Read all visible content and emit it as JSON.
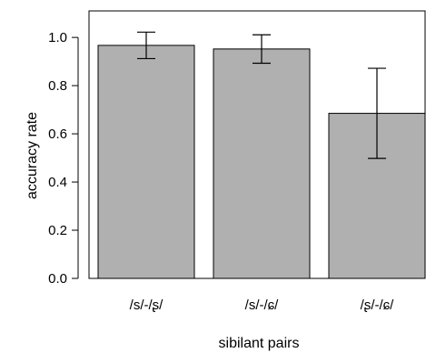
{
  "chart_data": {
    "type": "bar",
    "title": "",
    "xlabel": "sibilant pairs",
    "ylabel": "accuracy rate",
    "categories": [
      "/s/-/ʂ/",
      "/s/-/ɕ/",
      "/ʂ/-/ɕ/"
    ],
    "values": [
      0.967,
      0.952,
      0.685
    ],
    "error_low": [
      0.912,
      0.893,
      0.498
    ],
    "error_high": [
      1.022,
      1.011,
      0.872
    ],
    "ylim": [
      0,
      1.11
    ],
    "yticks": [
      0.0,
      0.2,
      0.4,
      0.6,
      0.8,
      1.0
    ],
    "ytick_labels": [
      "0.0",
      "0.2",
      "0.4",
      "0.6",
      "0.8",
      "1.0"
    ],
    "bar_color": "#b0b0b0",
    "grid": false
  }
}
